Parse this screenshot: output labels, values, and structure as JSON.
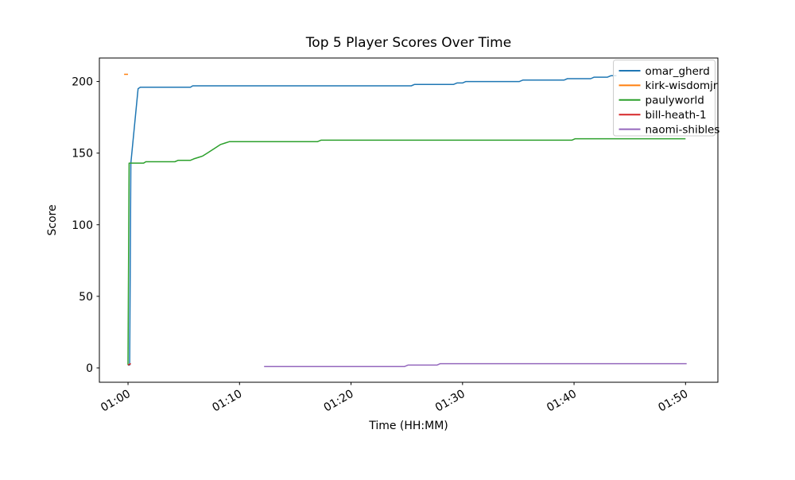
{
  "chart_data": {
    "type": "line",
    "title": "Top 5 Player Scores Over Time",
    "xlabel": "Time (HH:MM)",
    "ylabel": "Score",
    "x_axis_format": "elapsed time HH:MM; numeric x values below are minutes after 01:00",
    "xlim": [
      -2.57,
      52.9
    ],
    "ylim": [
      -10,
      216.4
    ],
    "grid": false,
    "legend_position": "upper right",
    "x_ticks": [
      {
        "value": 0,
        "label": "01:00"
      },
      {
        "value": 10,
        "label": "01:10"
      },
      {
        "value": 20,
        "label": "01:20"
      },
      {
        "value": 30,
        "label": "01:30"
      },
      {
        "value": 40,
        "label": "01:40"
      },
      {
        "value": 50,
        "label": "01:50"
      }
    ],
    "y_ticks": [
      0,
      50,
      100,
      150,
      200
    ],
    "series": [
      {
        "name": "omar_gherd",
        "color": "#1f77b4",
        "points": [
          [
            0,
            2
          ],
          [
            0.15,
            2
          ],
          [
            0.25,
            143
          ],
          [
            0.9,
            195
          ],
          [
            1.1,
            196
          ],
          [
            5.6,
            196
          ],
          [
            5.8,
            197
          ],
          [
            25.4,
            197
          ],
          [
            25.7,
            198
          ],
          [
            29.2,
            198
          ],
          [
            29.5,
            199
          ],
          [
            30.0,
            199
          ],
          [
            30.3,
            200
          ],
          [
            35.1,
            200
          ],
          [
            35.4,
            201
          ],
          [
            39.1,
            201
          ],
          [
            39.4,
            202
          ],
          [
            41.5,
            202
          ],
          [
            41.8,
            203
          ],
          [
            43.0,
            203
          ],
          [
            43.3,
            204
          ],
          [
            43.8,
            204
          ]
        ]
      },
      {
        "name": "kirk-wisdomjr",
        "color": "#ff7f0e",
        "points": [
          [
            -0.35,
            205
          ],
          [
            0,
            205
          ]
        ]
      },
      {
        "name": "paulyworld",
        "color": "#2ca02c",
        "points": [
          [
            0,
            2
          ],
          [
            0.1,
            143
          ],
          [
            1.4,
            143
          ],
          [
            1.6,
            144
          ],
          [
            4.2,
            144
          ],
          [
            4.5,
            145
          ],
          [
            5.6,
            145
          ],
          [
            5.9,
            146
          ],
          [
            6.3,
            147
          ],
          [
            6.7,
            148
          ],
          [
            7.1,
            150
          ],
          [
            7.5,
            152
          ],
          [
            7.9,
            154
          ],
          [
            8.3,
            156
          ],
          [
            8.7,
            157
          ],
          [
            9.1,
            158
          ],
          [
            17.0,
            158
          ],
          [
            17.3,
            159
          ],
          [
            39.8,
            159
          ],
          [
            40.1,
            160
          ],
          [
            50.0,
            160
          ]
        ]
      },
      {
        "name": "bill-heath-1",
        "color": "#d62728",
        "points": [
          [
            0,
            2
          ],
          [
            0.25,
            3
          ]
        ]
      },
      {
        "name": "naomi-shibles",
        "color": "#9467bd",
        "points": [
          [
            12.2,
            1
          ],
          [
            24.8,
            1
          ],
          [
            25.1,
            2
          ],
          [
            27.7,
            2
          ],
          [
            28.0,
            3
          ],
          [
            50.1,
            3
          ]
        ]
      }
    ],
    "legend_labels": [
      "omar_gherd",
      "kirk-wisdomjr",
      "paulyworld",
      "bill-heath-1",
      "naomi-shibles"
    ]
  }
}
